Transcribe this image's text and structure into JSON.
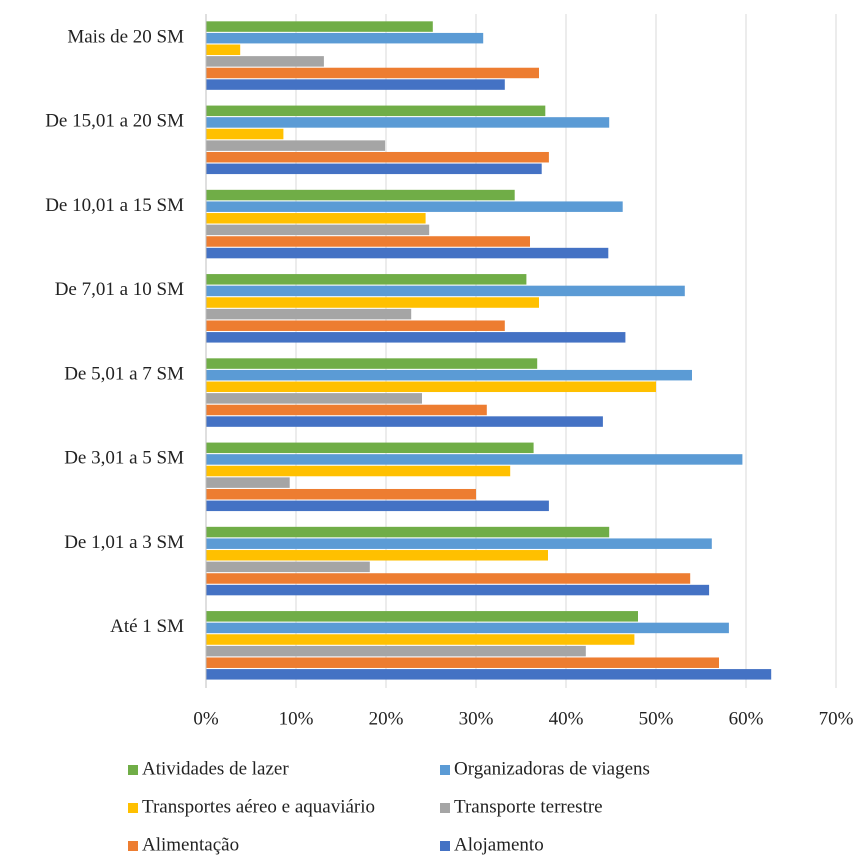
{
  "chart_data": {
    "type": "hbar",
    "categories": [
      "Mais de 20 SM",
      "De 15,01 a 20 SM",
      "De 10,01 a 15 SM",
      "De 7,01 a 10 SM",
      "De 5,01 a 7 SM",
      "De 3,01 a 5 SM",
      "De 1,01 a 3 SM",
      "Até 1 SM"
    ],
    "series": [
      {
        "name": "Atividades de lazer",
        "color": "#70ad47",
        "values": [
          25.2,
          37.7,
          34.3,
          35.6,
          36.8,
          36.4,
          44.8,
          48
        ]
      },
      {
        "name": "Organizadoras de viagens",
        "color": "#5b9bd5",
        "values": [
          30.8,
          44.8,
          46.3,
          53.2,
          54,
          59.6,
          56.2,
          58.1
        ]
      },
      {
        "name": "Transportes aéreo e aquaviário",
        "color": "#ffc000",
        "values": [
          3.8,
          8.6,
          24.4,
          37,
          50,
          33.8,
          38,
          47.6
        ]
      },
      {
        "name": "Transporte terrestre",
        "color": "#a5a5a5",
        "values": [
          13.1,
          19.9,
          24.8,
          22.8,
          24,
          9.3,
          18.2,
          42.2
        ]
      },
      {
        "name": "Alimentação",
        "color": "#ed7d31",
        "values": [
          37,
          38.1,
          36,
          33.2,
          31.2,
          30,
          53.8,
          57
        ]
      },
      {
        "name": "Alojamento",
        "color": "#4472c4",
        "values": [
          33.2,
          37.3,
          44.7,
          46.6,
          44.1,
          38.1,
          55.9,
          62.8
        ]
      }
    ],
    "xlim": [
      0,
      70
    ],
    "xticks": [
      {
        "value": 0,
        "label": "0%"
      },
      {
        "value": 10,
        "label": "10%"
      },
      {
        "value": 20,
        "label": "20%"
      },
      {
        "value": 30,
        "label": "30%"
      },
      {
        "value": 40,
        "label": "40%"
      },
      {
        "value": 50,
        "label": "50%"
      },
      {
        "value": 60,
        "label": "60%"
      },
      {
        "value": 70,
        "label": "70%"
      }
    ],
    "grid": true
  }
}
